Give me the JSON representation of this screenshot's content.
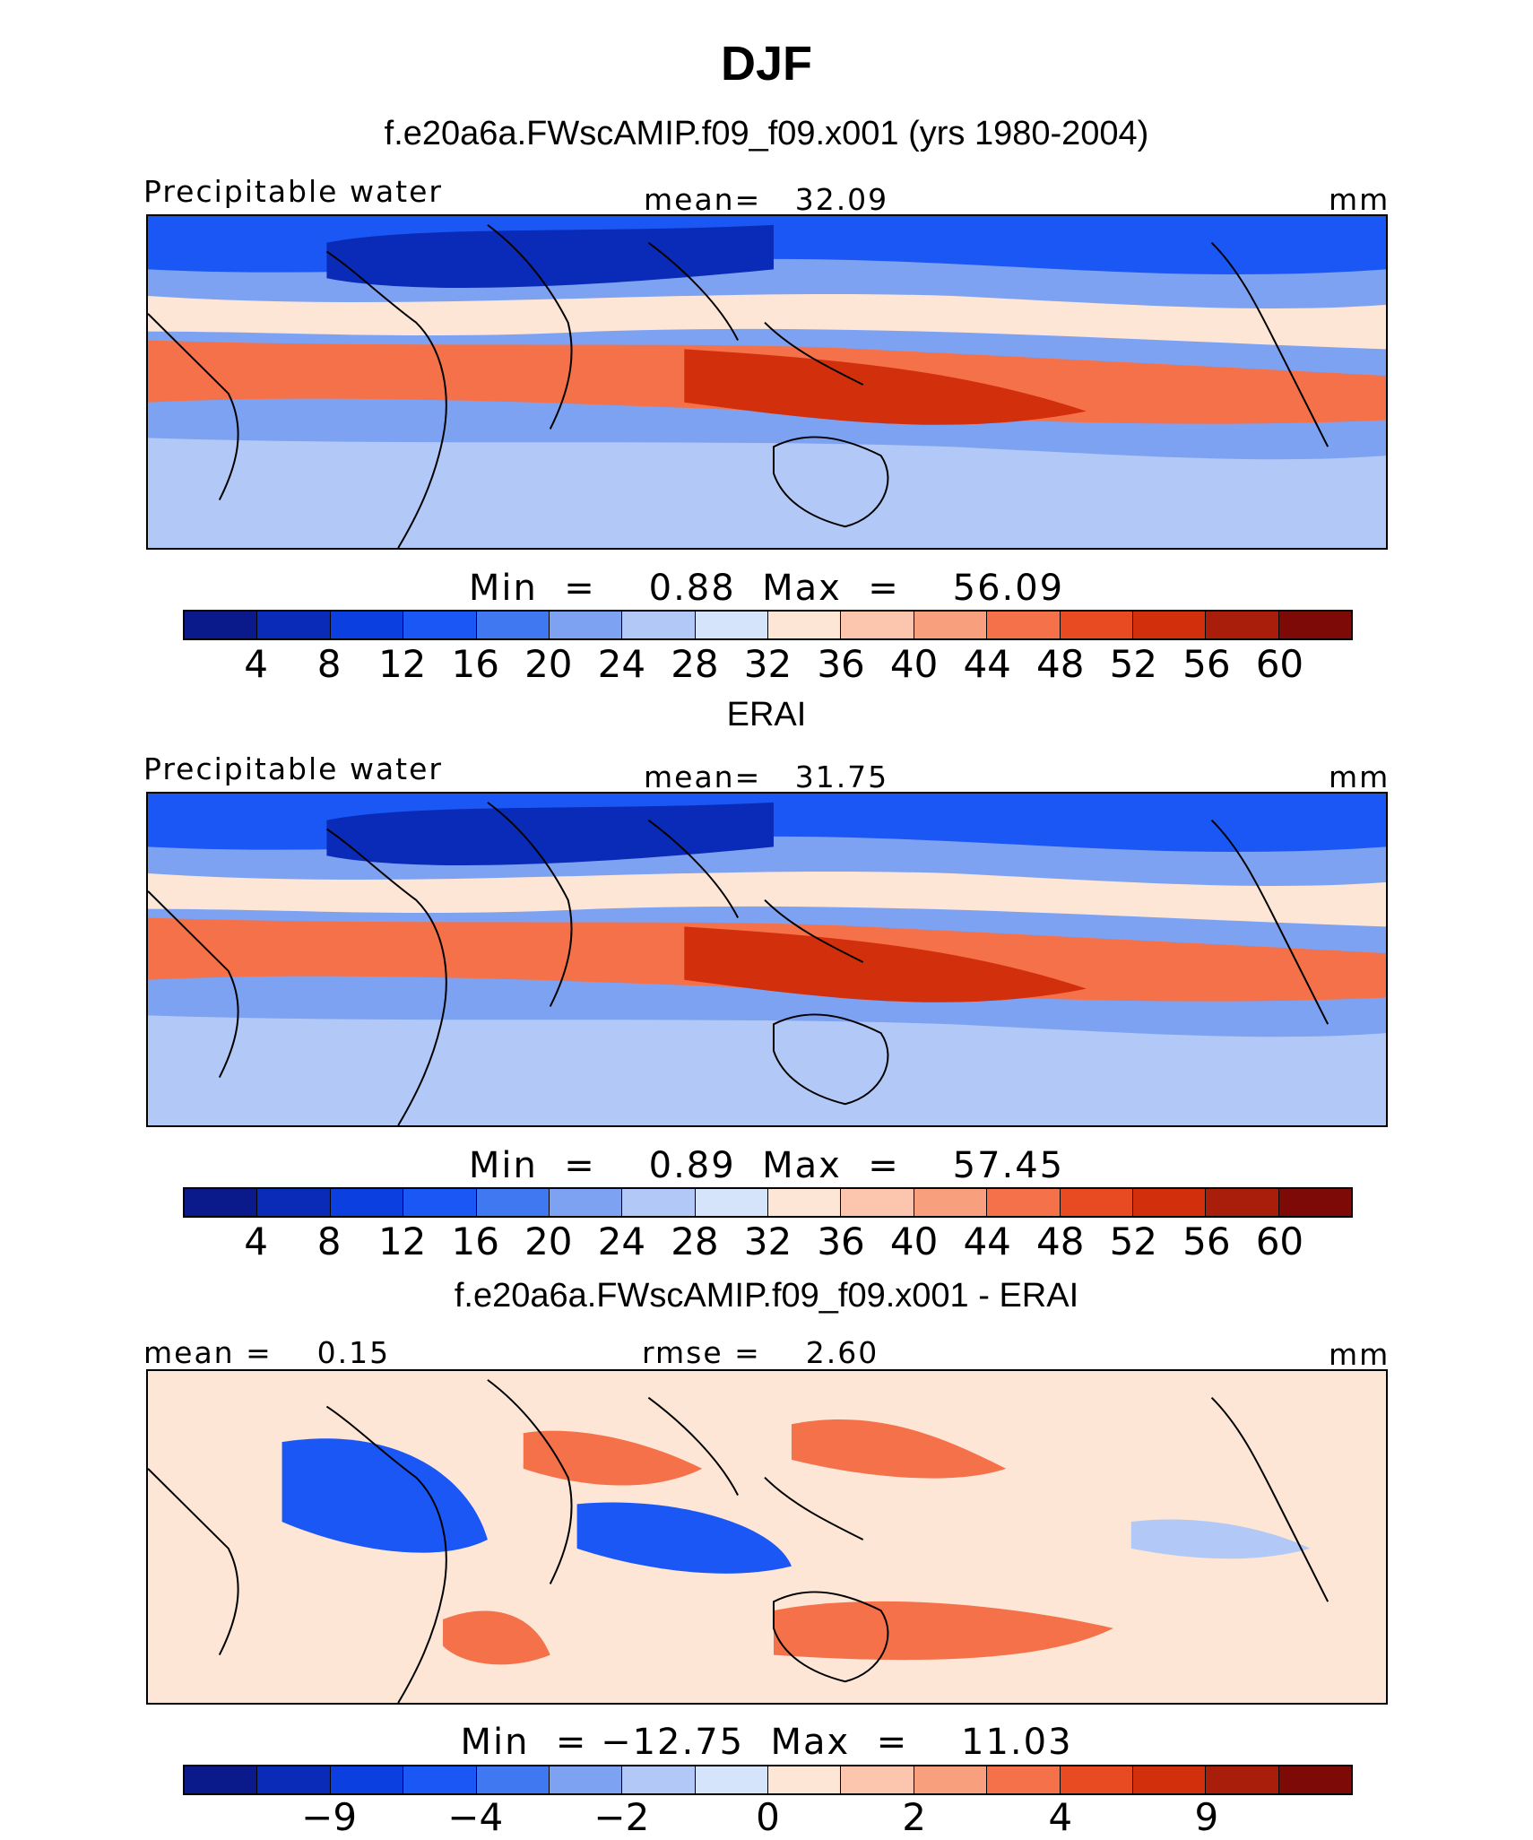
{
  "title": "DJF",
  "panels": [
    {
      "subtitle": "f.e20a6a.FWscAMIP.f09_f09.x001 (yrs 1980-2004)",
      "left_label": "Precipitable water",
      "center_label": "mean=   32.09",
      "right_label": "mm",
      "minmax": "Min  =    0.88  Max  =    56.09",
      "map_name": "model-precipitable-water-map",
      "map_mode": "abs",
      "colorbar_ticks": [
        "4",
        "8",
        "12",
        "16",
        "20",
        "24",
        "28",
        "32",
        "36",
        "40",
        "44",
        "48",
        "52",
        "56",
        "60"
      ]
    },
    {
      "subtitle": "ERAI",
      "left_label": "Precipitable water",
      "center_label": "mean=   31.75",
      "right_label": "mm",
      "minmax": "Min  =    0.89  Max  =    57.45",
      "map_name": "erai-precipitable-water-map",
      "map_mode": "abs",
      "colorbar_ticks": [
        "4",
        "8",
        "12",
        "16",
        "20",
        "24",
        "28",
        "32",
        "36",
        "40",
        "44",
        "48",
        "52",
        "56",
        "60"
      ]
    },
    {
      "subtitle": "f.e20a6a.FWscAMIP.f09_f09.x001 - ERAI",
      "left_label": "mean =    0.15",
      "center_label": "rmse =    2.60",
      "right_label": "mm",
      "minmax": "Min  = −12.75  Max  =    11.03",
      "map_name": "difference-map",
      "map_mode": "diff",
      "colorbar_ticks": [
        "−9",
        "−4",
        "−2",
        "0",
        "2",
        "4",
        "9"
      ]
    }
  ],
  "colors": {
    "palette": [
      "#0a1a8a",
      "#0a2bb8",
      "#0b3fe0",
      "#1a57f5",
      "#3f78f0",
      "#7ea2f2",
      "#b2c8f6",
      "#d6e4fb",
      "#fde6d6",
      "#fbc6ad",
      "#f89f7e",
      "#f4714a",
      "#e84a22",
      "#d2300c",
      "#a81e0a",
      "#7d0a06"
    ]
  }
}
